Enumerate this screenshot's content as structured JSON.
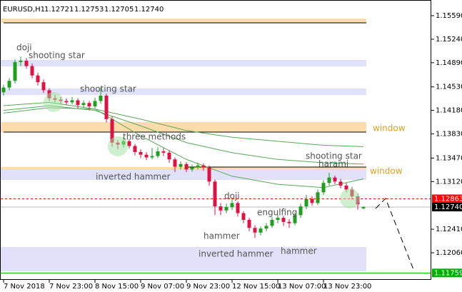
{
  "chart_data": {
    "type": "candlestick",
    "symbol": "EURUSD,H1",
    "up_color": "#1f9e1f",
    "down_color": "#dc1446",
    "ylim": [
      1.11656,
      1.15824
    ],
    "yticks": [
      {
        "value": 1.1559,
        "label": "1.15590"
      },
      {
        "value": 1.1524,
        "label": "1.15240"
      },
      {
        "value": 1.1489,
        "label": "1.14890"
      },
      {
        "value": 1.1453,
        "label": "1.14530"
      },
      {
        "value": 1.1418,
        "label": "1.14180"
      },
      {
        "value": 1.1383,
        "label": "1.13830"
      },
      {
        "value": 1.1347,
        "label": "1.13470"
      },
      {
        "value": 1.1312,
        "label": "1.13120"
      },
      {
        "value": 1.1241,
        "label": "1.12410"
      },
      {
        "value": 1.1206,
        "label": "1.12060"
      }
    ],
    "xticks": [
      {
        "value": 0,
        "label": "7 Nov 2018"
      },
      {
        "value": 8,
        "label": "7 Nov 23:00"
      },
      {
        "value": 16,
        "label": "8 Nov 15:00"
      },
      {
        "value": 24,
        "label": "9 Nov 07:00"
      },
      {
        "value": 32,
        "label": "9 Nov 23:00"
      },
      {
        "value": 40,
        "label": "12 Nov 15:00"
      },
      {
        "value": 48,
        "label": "13 Nov 07:00"
      },
      {
        "value": 56,
        "label": "13 Nov 23:00"
      }
    ],
    "ohlc": [
      [
        1.1445,
        1.1456,
        1.144,
        1.1452
      ],
      [
        1.1452,
        1.1466,
        1.1448,
        1.1462
      ],
      [
        1.1462,
        1.1494,
        1.1458,
        1.149
      ],
      [
        1.149,
        1.1498,
        1.1484,
        1.1492
      ],
      [
        1.1492,
        1.1496,
        1.148,
        1.1484
      ],
      [
        1.1484,
        1.1488,
        1.1466,
        1.147
      ],
      [
        1.147,
        1.1474,
        1.1455,
        1.146
      ],
      [
        1.146,
        1.1464,
        1.1444,
        1.1448
      ],
      [
        1.1448,
        1.1451,
        1.1432,
        1.1436
      ],
      [
        1.1436,
        1.1441,
        1.143,
        1.1434
      ],
      [
        1.1434,
        1.1438,
        1.1428,
        1.1432
      ],
      [
        1.1432,
        1.1436,
        1.1426,
        1.143
      ],
      [
        1.143,
        1.1438,
        1.1427,
        1.1433
      ],
      [
        1.1433,
        1.1436,
        1.1421,
        1.1426
      ],
      [
        1.1426,
        1.1433,
        1.1422,
        1.1429
      ],
      [
        1.1429,
        1.1432,
        1.1418,
        1.1424
      ],
      [
        1.1424,
        1.1437,
        1.1421,
        1.1432
      ],
      [
        1.1432,
        1.1452,
        1.1428,
        1.144
      ],
      [
        1.144,
        1.1443,
        1.14,
        1.1405
      ],
      [
        1.1405,
        1.1409,
        1.1364,
        1.137
      ],
      [
        1.137,
        1.1374,
        1.136,
        1.1367
      ],
      [
        1.1367,
        1.1378,
        1.1363,
        1.1372
      ],
      [
        1.1372,
        1.1375,
        1.1361,
        1.1365
      ],
      [
        1.1365,
        1.1368,
        1.1351,
        1.1356
      ],
      [
        1.1356,
        1.136,
        1.1347,
        1.1352
      ],
      [
        1.1352,
        1.1356,
        1.1344,
        1.1348
      ],
      [
        1.1348,
        1.1362,
        1.1345,
        1.135
      ],
      [
        1.135,
        1.1363,
        1.1347,
        1.1357
      ],
      [
        1.1357,
        1.1362,
        1.135,
        1.1355
      ],
      [
        1.1355,
        1.1358,
        1.134,
        1.1345
      ],
      [
        1.1345,
        1.1348,
        1.1326,
        1.1334
      ],
      [
        1.1334,
        1.1342,
        1.133,
        1.1338
      ],
      [
        1.1338,
        1.1341,
        1.1326,
        1.133
      ],
      [
        1.133,
        1.1337,
        1.1327,
        1.1333
      ],
      [
        1.1333,
        1.134,
        1.133,
        1.1336
      ],
      [
        1.1336,
        1.1339,
        1.1328,
        1.1333
      ],
      [
        1.1333,
        1.1336,
        1.1306,
        1.1312
      ],
      [
        1.1312,
        1.1315,
        1.1262,
        1.1275
      ],
      [
        1.1275,
        1.128,
        1.1262,
        1.1269
      ],
      [
        1.1269,
        1.1279,
        1.1265,
        1.1274
      ],
      [
        1.1274,
        1.1286,
        1.127,
        1.128
      ],
      [
        1.128,
        1.1283,
        1.126,
        1.1265
      ],
      [
        1.1265,
        1.1268,
        1.125,
        1.1255
      ],
      [
        1.1255,
        1.1258,
        1.1238,
        1.1243
      ],
      [
        1.1243,
        1.1247,
        1.1228,
        1.1236
      ],
      [
        1.1236,
        1.1245,
        1.1232,
        1.1242
      ],
      [
        1.1242,
        1.125,
        1.1238,
        1.1246
      ],
      [
        1.1246,
        1.1259,
        1.1243,
        1.1255
      ],
      [
        1.1255,
        1.1262,
        1.125,
        1.1258
      ],
      [
        1.1258,
        1.1261,
        1.1246,
        1.1252
      ],
      [
        1.1252,
        1.1256,
        1.1243,
        1.125
      ],
      [
        1.125,
        1.1266,
        1.1247,
        1.1262
      ],
      [
        1.1262,
        1.1279,
        1.1258,
        1.1275
      ],
      [
        1.1275,
        1.1292,
        1.1271,
        1.1286
      ],
      [
        1.1286,
        1.129,
        1.1276,
        1.128
      ],
      [
        1.128,
        1.13,
        1.1277,
        1.1296
      ],
      [
        1.1296,
        1.1314,
        1.1292,
        1.131
      ],
      [
        1.131,
        1.1325,
        1.1306,
        1.1318
      ],
      [
        1.1318,
        1.1321,
        1.1308,
        1.1312
      ],
      [
        1.1312,
        1.1316,
        1.1302,
        1.1306
      ],
      [
        1.1306,
        1.131,
        1.1296,
        1.13
      ],
      [
        1.13,
        1.1304,
        1.1285,
        1.129
      ],
      [
        1.129,
        1.1294,
        1.127,
        1.1278
      ],
      [
        1.12721,
        1.12753,
        1.12705,
        1.1274
      ]
    ],
    "ma_x": [
      0,
      8,
      16,
      24,
      32,
      40,
      48,
      56,
      63
    ],
    "moving_averages": [
      {
        "color": "#5aa85a",
        "values": [
          1.1414,
          1.1422,
          1.142,
          1.1405,
          1.1388,
          1.1378,
          1.1372,
          1.1366,
          1.1364
        ]
      },
      {
        "color": "#5aa85a",
        "values": [
          1.1418,
          1.1425,
          1.1418,
          1.1395,
          1.137,
          1.1355,
          1.1345,
          1.134,
          1.1338
        ]
      },
      {
        "color": "#5aa85a",
        "values": [
          1.1425,
          1.143,
          1.142,
          1.138,
          1.1345,
          1.132,
          1.1308,
          1.1303,
          1.1316
        ]
      }
    ],
    "zones": [
      {
        "top": 1.15547,
        "bottom": 1.15484,
        "color": "#fbdcaa"
      },
      {
        "top": 1.14931,
        "bottom": 1.14835,
        "color": "#e1e1fa"
      },
      {
        "top": 1.14506,
        "bottom": 1.1441,
        "color": "#e1e1fa"
      },
      {
        "top": 1.14006,
        "bottom": 1.13857,
        "color": "#fbdcaa"
      },
      {
        "top": 1.13315,
        "bottom": 1.13144,
        "color": "#e1e1fa"
      },
      {
        "top": 1.13336,
        "bottom": 1.13294,
        "color": "#fbdcaa"
      },
      {
        "top": 1.12145,
        "bottom": 1.11783,
        "color": "#e1e1fa"
      }
    ],
    "levels": [
      1.15484,
      1.13857,
      1.13336
    ],
    "price_tags": [
      {
        "value": 1.12863,
        "color": "#ff0000"
      },
      {
        "value": 1.1274,
        "label": "1.12740",
        "color": "#000000"
      },
      {
        "value": 1.11759,
        "color": "#00b000"
      }
    ],
    "annotations": [
      "doji",
      "shooting star",
      "shooting star",
      "three methods",
      "inverted hammer",
      "doji",
      "engulfing",
      "hammer",
      "inverted hammer",
      "hammer",
      "shooting star",
      "harami",
      "window",
      "window"
    ]
  }
}
